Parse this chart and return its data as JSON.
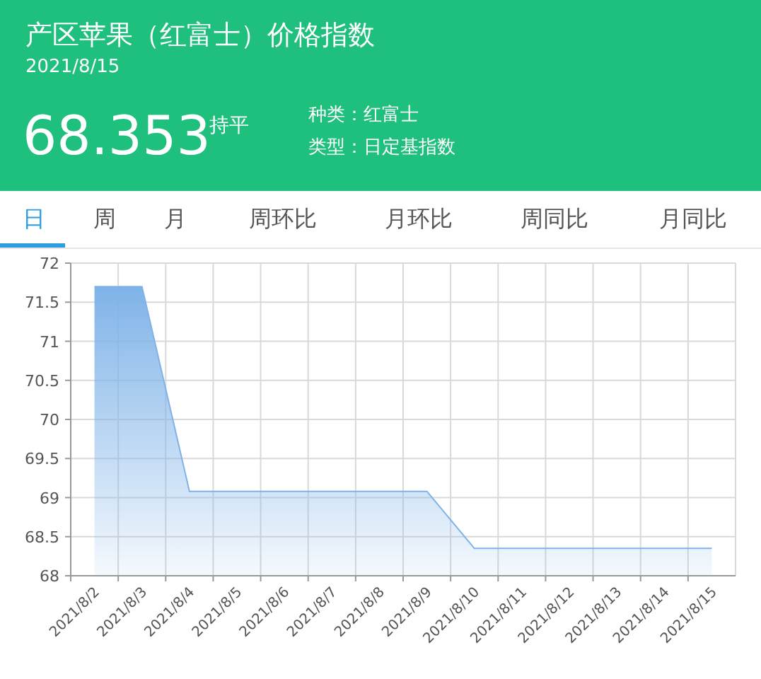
{
  "chart_data": {
    "type": "area",
    "title": "产区苹果（红富士）价格指数",
    "subtitle": "2021/8/15",
    "annotations": [
      "68.353",
      "持平",
      "种类：红富士",
      "类型：日定基指数",
      "日",
      "周",
      "月",
      "周环比",
      "月环比",
      "周同比",
      "月同比"
    ],
    "categories": [
      "2021/8/2",
      "2021/8/3",
      "2021/8/4",
      "2021/8/5",
      "2021/8/6",
      "2021/8/7",
      "2021/8/8",
      "2021/8/9",
      "2021/8/10",
      "2021/8/11",
      "2021/8/12",
      "2021/8/13",
      "2021/8/14",
      "2021/8/15"
    ],
    "series": [
      {
        "color": "#7fb3e8",
        "values": [
          71.7,
          71.7,
          69.08,
          69.08,
          69.08,
          69.08,
          69.08,
          69.08,
          68.35,
          68.35,
          68.35,
          68.35,
          68.35,
          68.35
        ]
      }
    ],
    "ylim": [
      68,
      72
    ],
    "yticks": [
      68,
      68.5,
      69,
      69.5,
      70,
      70.5,
      71,
      71.5,
      72
    ],
    "grid": true,
    "marker": "none",
    "line_style": "solid"
  }
}
